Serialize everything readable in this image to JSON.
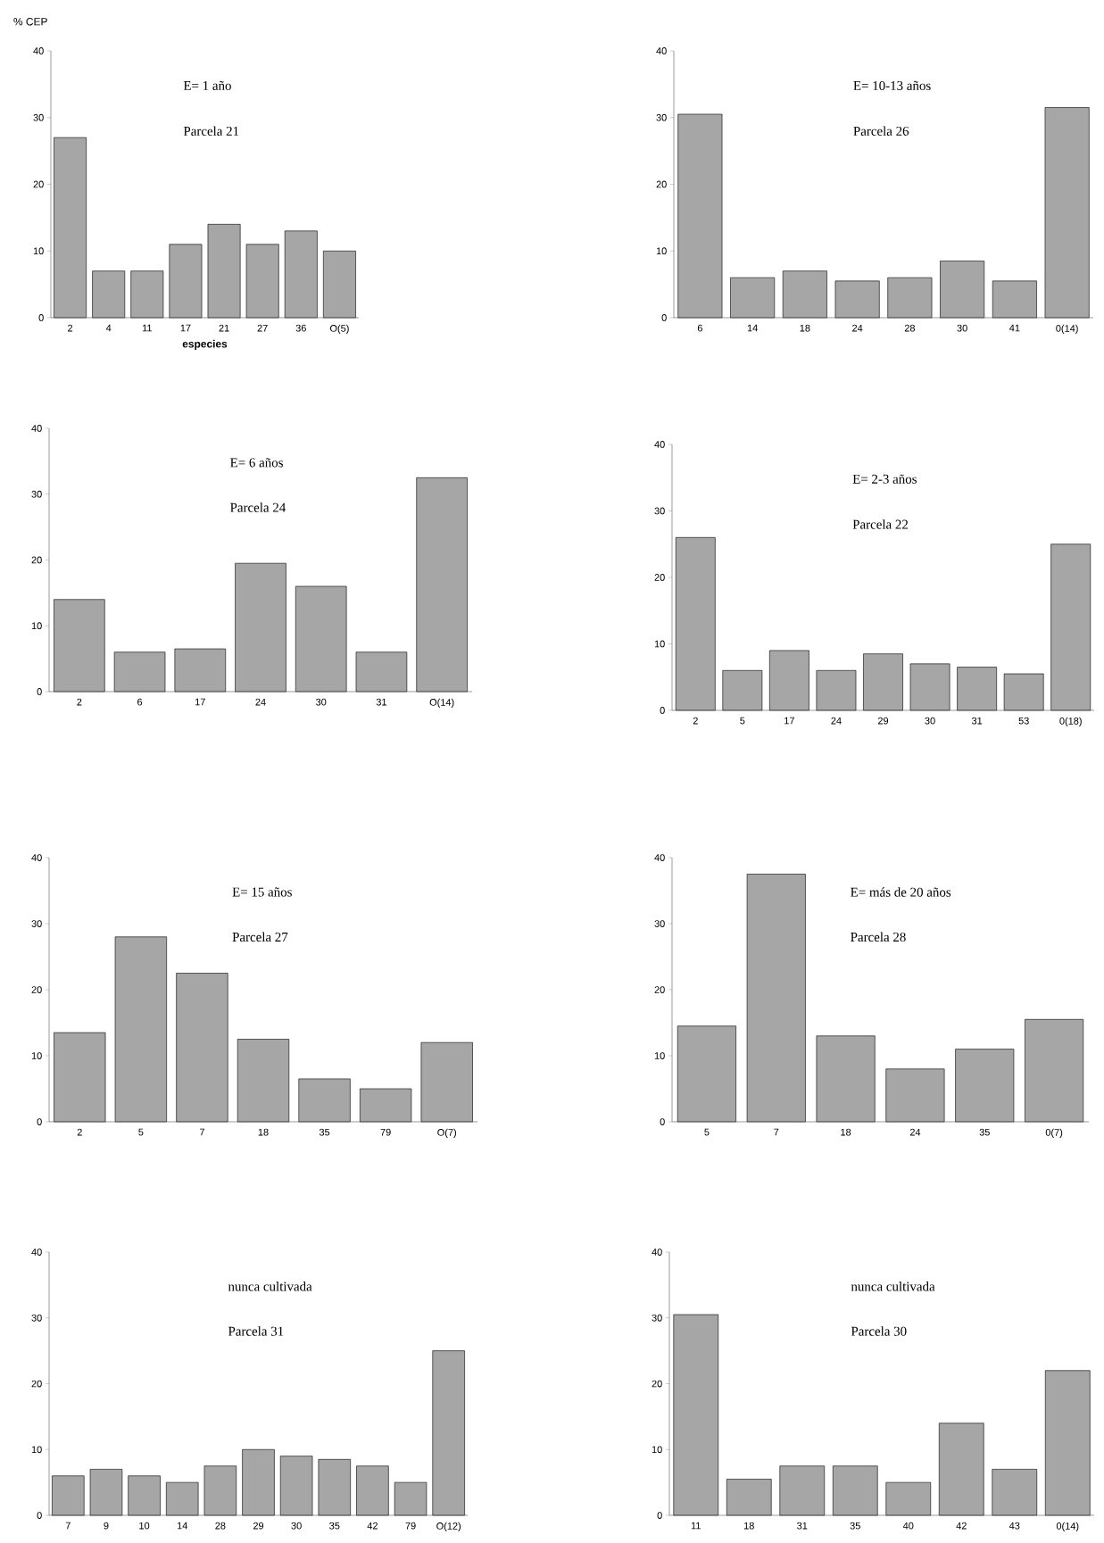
{
  "chart_data": [
    {
      "type": "bar",
      "title": "E= 1 año",
      "subtitle": "Parcela 21",
      "xlabel": "especies",
      "ylabel": "% CEP",
      "categories": [
        "2",
        "4",
        "11",
        "17",
        "21",
        "27",
        "36",
        "O(5)"
      ],
      "values": [
        27,
        7,
        7,
        11,
        14,
        11,
        13,
        10
      ],
      "color": "#a6a6a6",
      "ylim": [
        0,
        40
      ],
      "yticks": [
        0,
        10,
        20,
        30,
        40
      ]
    },
    {
      "type": "bar",
      "title": "E= 10-13 años",
      "subtitle": "Parcela 26",
      "categories": [
        "6",
        "14",
        "18",
        "24",
        "28",
        "30",
        "41",
        "0(14)"
      ],
      "values": [
        30.5,
        6,
        7,
        5.5,
        6,
        8.5,
        5.5,
        31.5
      ],
      "color": "#a6a6a6",
      "ylim": [
        0,
        40
      ],
      "yticks": [
        0,
        10,
        20,
        30,
        40
      ]
    },
    {
      "type": "bar",
      "title": "E= 6 años",
      "subtitle": "Parcela 24",
      "categories": [
        "2",
        "6",
        "17",
        "24",
        "30",
        "31",
        "O(14)"
      ],
      "values": [
        14,
        6,
        6.5,
        19.5,
        16,
        6,
        32.5
      ],
      "color": "#a6a6a6",
      "ylim": [
        0,
        40
      ],
      "yticks": [
        0,
        10,
        20,
        30,
        40
      ]
    },
    {
      "type": "bar",
      "title": "E= 2-3 años",
      "subtitle": "Parcela 22",
      "categories": [
        "2",
        "5",
        "17",
        "24",
        "29",
        "30",
        "31",
        "53",
        "0(18)"
      ],
      "values": [
        26,
        6,
        9,
        6,
        8.5,
        7,
        6.5,
        5.5,
        25
      ],
      "color": "#a6a6a6",
      "ylim": [
        0,
        40
      ],
      "yticks": [
        0,
        10,
        20,
        30,
        40
      ]
    },
    {
      "type": "bar",
      "title": "E= 15 años",
      "subtitle": "Parcela 27",
      "categories": [
        "2",
        "5",
        "7",
        "18",
        "35",
        "79",
        "O(7)"
      ],
      "values": [
        13.5,
        28,
        22.5,
        12.5,
        6.5,
        5,
        12
      ],
      "color": "#a6a6a6",
      "ylim": [
        0,
        40
      ],
      "yticks": [
        0,
        10,
        20,
        30,
        40
      ]
    },
    {
      "type": "bar",
      "title": "E= más de 20 años",
      "subtitle": "Parcela 28",
      "categories": [
        "5",
        "7",
        "18",
        "24",
        "35",
        "0(7)"
      ],
      "values": [
        14.5,
        37.5,
        13,
        8,
        11,
        15.5
      ],
      "color": "#a6a6a6",
      "ylim": [
        0,
        40
      ],
      "yticks": [
        0,
        10,
        20,
        30,
        40
      ]
    },
    {
      "type": "bar",
      "title": "nunca cultivada",
      "subtitle": "Parcela 31",
      "categories": [
        "7",
        "9",
        "10",
        "14",
        "28",
        "29",
        "30",
        "35",
        "42",
        "79",
        "O(12)"
      ],
      "values": [
        6,
        7,
        6,
        5,
        7.5,
        10,
        9,
        8.5,
        7.5,
        5,
        25
      ],
      "color": "#a6a6a6",
      "ylim": [
        0,
        40
      ],
      "yticks": [
        0,
        10,
        20,
        30,
        40
      ]
    },
    {
      "type": "bar",
      "title": "nunca cultivada",
      "subtitle": "Parcela 30",
      "categories": [
        "11",
        "18",
        "31",
        "35",
        "40",
        "42",
        "43",
        "0(14)"
      ],
      "values": [
        30.5,
        5.5,
        7.5,
        7.5,
        5,
        14,
        7,
        22
      ],
      "color": "#a6a6a6",
      "ylim": [
        0,
        40
      ],
      "yticks": [
        0,
        10,
        20,
        30,
        40
      ]
    }
  ]
}
